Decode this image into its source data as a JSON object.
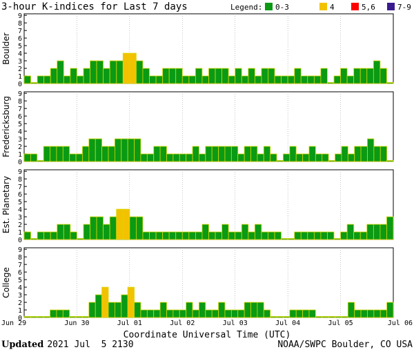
{
  "title": "3-hour K-indices for Last 7 days",
  "legend": {
    "label": "Legend:",
    "items": [
      {
        "label": "0-3",
        "color": "#0a9a14"
      },
      {
        "label": "4",
        "color": "#f2c200"
      },
      {
        "label": "5,6",
        "color": "#ff0000"
      },
      {
        "label": "7-9",
        "color": "#3a1a8f"
      }
    ]
  },
  "x_axis": {
    "title": "Coordinate Universal Time (UTC)",
    "ticks": [
      "Jun 29",
      "Jun 30",
      "Jul 01",
      "Jul 02",
      "Jul 03",
      "Jul 04",
      "Jul 05",
      "Jul 06"
    ]
  },
  "footer": {
    "updated_label": "Updated",
    "updated_value": "2021 Jul  5 2130",
    "source": "NOAA/SWPC Boulder, CO USA"
  },
  "colors": {
    "low": "#0a9a14",
    "mid": "#f2c200",
    "high": "#ff0000",
    "severe": "#3a1a8f",
    "bar_edge": "#d8d800"
  },
  "chart_data": [
    {
      "type": "bar",
      "name": "Boulder",
      "ylim": [
        0,
        9
      ],
      "y_ticks": [
        "0",
        "1",
        "2",
        "3",
        "4",
        "5",
        "6",
        "7",
        "8",
        "9"
      ],
      "values": [
        1,
        0,
        1,
        1,
        2,
        3,
        1,
        2,
        1,
        2,
        3,
        3,
        2,
        3,
        3,
        4,
        4,
        3,
        2,
        1,
        1,
        2,
        2,
        2,
        1,
        1,
        2,
        1,
        2,
        2,
        2,
        1,
        2,
        1,
        2,
        1,
        2,
        2,
        1,
        1,
        1,
        2,
        1,
        1,
        1,
        2,
        0,
        1,
        2,
        1,
        2,
        2,
        2,
        3,
        2,
        0
      ]
    },
    {
      "type": "bar",
      "name": "Fredericksburg",
      "ylim": [
        0,
        9
      ],
      "y_ticks": [
        "0",
        "1",
        "2",
        "3",
        "4",
        "5",
        "6",
        "7",
        "8",
        "9"
      ],
      "values": [
        1,
        1,
        0,
        2,
        2,
        2,
        2,
        1,
        1,
        2,
        3,
        3,
        2,
        2,
        3,
        3,
        3,
        3,
        1,
        1,
        2,
        2,
        1,
        1,
        1,
        1,
        2,
        1,
        2,
        2,
        2,
        2,
        2,
        1,
        2,
        2,
        1,
        2,
        1,
        0,
        1,
        2,
        1,
        1,
        2,
        1,
        1,
        0,
        1,
        2,
        1,
        2,
        2,
        3,
        2,
        2,
        0
      ]
    },
    {
      "type": "bar",
      "name": "Est. Planetary",
      "ylim": [
        0,
        9
      ],
      "y_ticks": [
        "0",
        "1",
        "2",
        "3",
        "4",
        "5",
        "6",
        "7",
        "8",
        "9"
      ],
      "values": [
        1,
        0,
        1,
        1,
        1,
        2,
        2,
        1,
        0,
        2,
        3,
        3,
        2,
        3,
        4,
        4,
        3,
        3,
        1,
        1,
        1,
        1,
        1,
        1,
        1,
        1,
        1,
        2,
        1,
        1,
        2,
        1,
        1,
        2,
        1,
        2,
        1,
        1,
        1,
        0,
        0,
        1,
        1,
        1,
        1,
        1,
        1,
        0,
        1,
        2,
        1,
        1,
        2,
        2,
        2,
        3
      ]
    },
    {
      "type": "bar",
      "name": "College",
      "ylim": [
        0,
        9
      ],
      "y_ticks": [
        "0",
        "1",
        "2",
        "3",
        "4",
        "5",
        "6",
        "7",
        "8",
        "9"
      ],
      "values": [
        0,
        0,
        0,
        0,
        1,
        1,
        1,
        0,
        0,
        0,
        2,
        3,
        4,
        2,
        2,
        3,
        4,
        2,
        1,
        1,
        1,
        2,
        1,
        1,
        1,
        2,
        1,
        2,
        1,
        1,
        2,
        1,
        1,
        1,
        2,
        2,
        2,
        1,
        0,
        0,
        0,
        1,
        1,
        1,
        1,
        0,
        0,
        0,
        0,
        0,
        2,
        1,
        1,
        1,
        1,
        1,
        2
      ]
    }
  ]
}
